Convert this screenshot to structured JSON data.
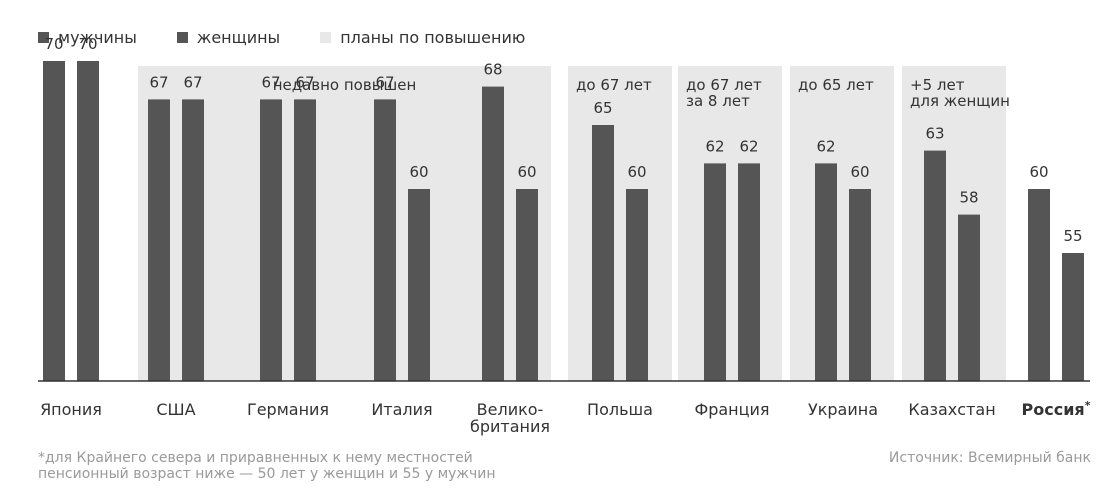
{
  "legend": {
    "men": "мужчины",
    "women": "женщины",
    "plans": "планы по повышению"
  },
  "colors": {
    "men": "#555555",
    "women": "#555555",
    "plans_background": "#e8e8e8",
    "text": "#333333",
    "muted": "#9a9a9a",
    "axis": "#333333"
  },
  "chart_data": {
    "type": "bar",
    "categories": [
      "Япония",
      "США",
      "Германия",
      "Италия",
      "Велико-\nбритания",
      "Польша",
      "Франция",
      "Украина",
      "Казахстан",
      "Россия"
    ],
    "category_emphasis": [
      "",
      "",
      "",
      "",
      "",
      "",
      "",
      "",
      "",
      "*"
    ],
    "series": [
      {
        "name": "мужчины",
        "values": [
          70,
          67,
          67,
          67,
          68,
          65,
          62,
          62,
          63,
          60
        ]
      },
      {
        "name": "женщины",
        "values": [
          70,
          67,
          67,
          60,
          60,
          60,
          62,
          60,
          58,
          55
        ]
      }
    ],
    "ylim": [
      45,
      72
    ],
    "grid": false,
    "legend_position": "top-left",
    "annotations": [
      {
        "label": "недавно повышен",
        "from": 1,
        "to": 4
      },
      {
        "label": "до 67 лет",
        "from": 5,
        "to": 5
      },
      {
        "label": "до 67 лет\nза 8 лет",
        "from": 6,
        "to": 6
      },
      {
        "label": "до 65 лет",
        "from": 7,
        "to": 7
      },
      {
        "label": "+5 лет\nдля женщин",
        "from": 8,
        "to": 8
      }
    ]
  },
  "footnote": "*для Крайнего севера и приравненных к нему местностей\nпенсионный возраст ниже — 50 лет у женщин и 55 у мужчин",
  "source": "Источник: Всемирный банк"
}
